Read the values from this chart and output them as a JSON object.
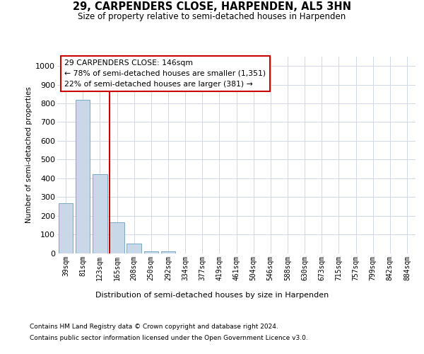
{
  "title": "29, CARPENDERS CLOSE, HARPENDEN, AL5 3HN",
  "subtitle": "Size of property relative to semi-detached houses in Harpenden",
  "xlabel": "Distribution of semi-detached houses by size in Harpenden",
  "ylabel": "Number of semi-detached properties",
  "categories": [
    "39sqm",
    "81sqm",
    "123sqm",
    "165sqm",
    "208sqm",
    "250sqm",
    "292sqm",
    "334sqm",
    "377sqm",
    "419sqm",
    "461sqm",
    "504sqm",
    "546sqm",
    "588sqm",
    "630sqm",
    "673sqm",
    "715sqm",
    "757sqm",
    "799sqm",
    "842sqm",
    "884sqm"
  ],
  "values": [
    265,
    820,
    420,
    165,
    50,
    10,
    10,
    0,
    0,
    0,
    0,
    0,
    0,
    0,
    0,
    0,
    0,
    0,
    0,
    0,
    0
  ],
  "bar_color": "#c8d8e8",
  "bar_edge_color": "#7aaac8",
  "property_line_color": "#cc0000",
  "annotation_text": "29 CARPENDERS CLOSE: 146sqm\n← 78% of semi-detached houses are smaller (1,351)\n22% of semi-detached houses are larger (381) →",
  "annotation_box_color": "#cc0000",
  "ylim": [
    0,
    1050
  ],
  "yticks": [
    0,
    100,
    200,
    300,
    400,
    500,
    600,
    700,
    800,
    900,
    1000
  ],
  "background_color": "#ffffff",
  "grid_color": "#d0d8e8",
  "footer_line1": "Contains HM Land Registry data © Crown copyright and database right 2024.",
  "footer_line2": "Contains public sector information licensed under the Open Government Licence v3.0."
}
